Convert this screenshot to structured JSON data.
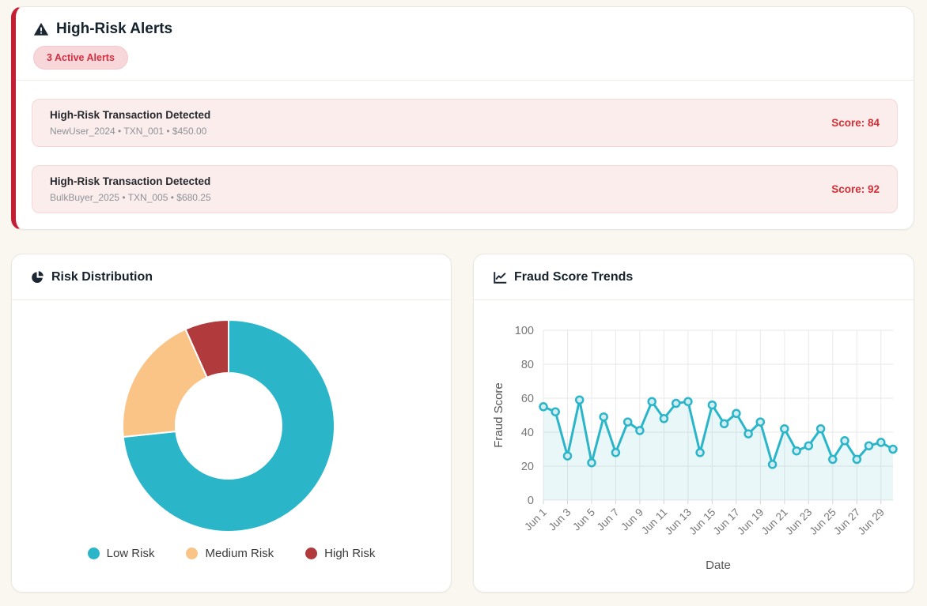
{
  "alerts_card": {
    "title": "High-Risk Alerts",
    "badge": "3 Active Alerts",
    "items": [
      {
        "title": "High-Risk Transaction Detected",
        "user": "NewUser_2024",
        "transaction_id": "TXN_001",
        "amount": "$450.00",
        "meta": "NewUser_2024 • TXN_001 • $450.00",
        "score": 84,
        "score_label": "Score: 84"
      },
      {
        "title": "High-Risk Transaction Detected",
        "user": "BulkBuyer_2025",
        "transaction_id": "TXN_005",
        "amount": "$680.25",
        "meta": "BulkBuyer_2025 • TXN_005 • $680.25",
        "score": 92,
        "score_label": "Score: 92"
      }
    ]
  },
  "risk_card": {
    "title": "Risk Distribution"
  },
  "trends_card": {
    "title": "Fraud Score Trends"
  },
  "colors": {
    "accent_red": "#C31E33",
    "badge_bg": "#F8D7DA",
    "badge_text": "#D22F3F",
    "alert_bg": "#FCEDED",
    "score_text": "#D22F35",
    "low_risk": "#2AB5C9",
    "medium_risk": "#FAC487",
    "high_risk": "#B13A3C"
  },
  "chart_data": [
    {
      "type": "pie",
      "subtype": "donut",
      "title": "Risk Distribution",
      "labels": [
        "Low Risk",
        "Medium Risk",
        "High Risk"
      ],
      "values": [
        11,
        3,
        1
      ],
      "percentages": [
        73.3,
        20.0,
        6.7
      ],
      "colors": [
        "#2AB5C9",
        "#FAC487",
        "#B13A3C"
      ],
      "legend_position": "bottom"
    },
    {
      "type": "line",
      "title": "Fraud Score Trends",
      "xlabel": "Date",
      "ylabel": "Fraud Score",
      "ylim": [
        0,
        100
      ],
      "yticks": [
        0,
        20,
        40,
        60,
        80,
        100
      ],
      "grid": true,
      "x": [
        "Jun 1",
        "Jun 2",
        "Jun 3",
        "Jun 4",
        "Jun 5",
        "Jun 6",
        "Jun 7",
        "Jun 8",
        "Jun 9",
        "Jun 10",
        "Jun 11",
        "Jun 12",
        "Jun 13",
        "Jun 14",
        "Jun 15",
        "Jun 16",
        "Jun 17",
        "Jun 18",
        "Jun 19",
        "Jun 20",
        "Jun 21",
        "Jun 22",
        "Jun 23",
        "Jun 24",
        "Jun 25",
        "Jun 26",
        "Jun 27",
        "Jun 28",
        "Jun 29",
        "Jun 30"
      ],
      "values": [
        55,
        52,
        26,
        59,
        22,
        49,
        28,
        46,
        41,
        58,
        48,
        57,
        58,
        28,
        56,
        45,
        51,
        39,
        46,
        21,
        42,
        29,
        32,
        42,
        24,
        35,
        24,
        32,
        34,
        30
      ],
      "line_color": "#2AB5C9",
      "fill_color": "rgba(42,181,201,0.10)",
      "point_fill": "#D2ECF1"
    }
  ]
}
